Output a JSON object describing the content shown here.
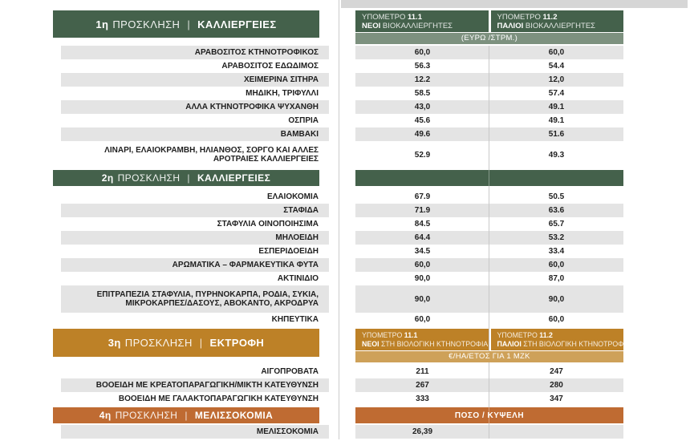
{
  "colors": {
    "green": "#44614b",
    "green_light": "#7d917f",
    "ochre": "#bd8127",
    "ochre_light": "#cea159",
    "orange": "#bf6b32",
    "stripe": "#e4e4e4",
    "topband": "#d6d6d6",
    "text": "#1f1f1f"
  },
  "table": {
    "sections": [
      {
        "header": {
          "num": "1η",
          "call": "ΠΡΟΣΚΛΗΣΗ",
          "sep": "|",
          "title": "ΚΑΛΛΙΕΡΓΕΙΕΣ"
        },
        "right": {
          "col1": {
            "label": "ΥΠΟΜΕΤΡΟ",
            "num": "11.1",
            "strong": "ΝΕΟΙ",
            "rest": "ΒΙΟΚΑΛΛΙΕΡΓΗΤΕΣ"
          },
          "col2": {
            "label": "ΥΠΟΜΕΤΡΟ",
            "num": "11.2",
            "strong": "ΠΑΛΙΟΙ",
            "rest": "ΒΙΟΚΑΛΛΙΕΡΓΗΤΕΣ"
          },
          "unit": "(ΕΥΡΩ /ΣΤΡΜ.)"
        },
        "first_shaded": true,
        "rows": [
          {
            "label": "ΑΡΑΒΟΣΙΤΟΣ ΚΤΗΝΟΤΡΟΦΙΚΟΣ",
            "v1": "60,0",
            "v2": "60,0"
          },
          {
            "label": "ΑΡΑΒΟΣΙΤΟΣ ΕΔΩΔΙΜΟΣ",
            "v1": "56.3",
            "v2": "54.4"
          },
          {
            "label": "ΧΕΙΜΕΡΙΝΑ ΣΙΤΗΡΑ",
            "v1": "12.2",
            "v2": "12,0"
          },
          {
            "label": "ΜΗΔΙΚΗ, ΤΡΙΦΥΛΛΙ",
            "v1": "58.5",
            "v2": "57.4"
          },
          {
            "label": "ΑΛΛΑ ΚΤΗΝΟΤΡΟΦΙΚΑ ΨΥΧΑΝΘΗ",
            "v1": "43,0",
            "v2": "49.1"
          },
          {
            "label": "ΟΣΠΡΙΑ",
            "v1": "45.6",
            "v2": "49.1"
          },
          {
            "label": "ΒΑΜΒΑΚΙ",
            "v1": "49.6",
            "v2": "51.6"
          },
          {
            "label": "ΛΙΝΑΡΙ, ΕΛΑΙΟΚΡΑΜΒΗ, ΗΛΙΑΝΘΟΣ, ΣΟΡΓΟ ΚΑΙ ΑΛΛΕΣ ΑΡΟΤΡΑΙΕΣ ΚΑΛΛΙΕΡΓΕΙΕΣ",
            "v1": "52.9",
            "v2": "49.3",
            "tall": true
          }
        ]
      },
      {
        "header": {
          "num": "2η",
          "call": "ΠΡΟΣΚΛΗΣΗ",
          "sep": "|",
          "title": "ΚΑΛΛΙΕΡΓΕΙΕΣ"
        },
        "right_bar": "",
        "first_shaded": false,
        "rows": [
          {
            "label": "ΕΛΑΙΟΚΟΜΙΑ",
            "v1": "67.9",
            "v2": "50.5"
          },
          {
            "label": "ΣΤΑΦΙΔΑ",
            "v1": "71.9",
            "v2": "63.6"
          },
          {
            "label": "ΣΤΑΦΥΛΙΑ ΟΙΝΟΠΟΙΗΣΙΜΑ",
            "v1": "84.5",
            "v2": "65.7"
          },
          {
            "label": "ΜΗΛΟΕΙΔΗ",
            "v1": "64.4",
            "v2": "53.2"
          },
          {
            "label": "ΕΣΠΕΡΙΔΟΕΙΔΗ",
            "v1": "34.5",
            "v2": "33.4"
          },
          {
            "label": "ΑΡΩΜΑΤΙΚΑ – ΦΑΡΜΑΚΕΥΤΙΚΑ ΦΥΤΑ",
            "v1": "60,0",
            "v2": "60,0"
          },
          {
            "label": "ΑΚΤΙΝΙΔΙΟ",
            "v1": "90,0",
            "v2": "87,0"
          },
          {
            "label": "ΕΠΙΤΡΑΠΕΖΙΑ ΣΤΑΦΥΛΙΑ, ΠΥΡΗΝΟΚΑΡΠΑ, ΡΟΔΙΑ, ΣΥΚΙΑ, ΜΙΚΡΟΚΑΡΠΕΣ/ΔΑΣΟΥΣ, ΑΒΟΚΑΝΤΟ, ΑΚΡΟΔΡΥΑ",
            "v1": "90,0",
            "v2": "90,0",
            "tall": true
          },
          {
            "label": "ΚΗΠΕΥΤΙΚΑ",
            "v1": "60,0",
            "v2": "60,0"
          }
        ]
      },
      {
        "header": {
          "num": "3η",
          "call": "ΠΡΟΣΚΛΗΣΗ",
          "sep": "|",
          "title": "ΕΚΤΡΟΦΗ"
        },
        "right": {
          "col1": {
            "label": "ΥΠΟΜΕΤΡΟ",
            "num": "11.1",
            "strong": "ΝΕΟΙ",
            "rest": "ΣΤΗ ΒΙΟΛΟΓΙΚΗ ΚΤΗΝΟΤΡΟΦΙΑ"
          },
          "col2": {
            "label": "ΥΠΟΜΕΤΡΟ",
            "num": "11.2",
            "strong": "ΠΑΛΙΟΙ",
            "rest": "ΣΤΗ ΒΙΟΛΟΓΙΚΗ ΚΤΗΝΟΤΡΟΦΙΑ"
          },
          "unit": "€/ΗΑ/ΕΤΟΣ ΓΙΑ 1 ΜΖΚ"
        },
        "first_shaded": false,
        "rows": [
          {
            "label": "ΑΙΓΟΠΡΟΒΑΤΑ",
            "v1": "211",
            "v2": "247"
          },
          {
            "label": "ΒΟΟΕΙΔΗ ΜΕ ΚΡΕΑΤΟΠΑΡΑΓΩΓΙΚΗ/ΜΙΚΤΗ ΚΑΤΕΥΘΥΝΣΗ",
            "v1": "267",
            "v2": "280"
          },
          {
            "label": "ΒΟΟΕΙΔΗ ΜΕ ΓΑΛΑΚΤΟΠΑΡΑΓΩΓΙΚΗ ΚΑΤΕΥΘΥΝΣΗ",
            "v1": "333",
            "v2": "347"
          }
        ]
      },
      {
        "header": {
          "num": "4η",
          "call": "ΠΡΟΣΚΛΗΣΗ",
          "sep": "|",
          "title": "ΜΕΛΙΣΣΟΚΟΜΙΑ"
        },
        "right_bar": "ΠΟΣΟ / ΚΥΨΕΛΗ",
        "first_shaded": true,
        "rows": [
          {
            "label": "ΜΕΛΙΣΣΟΚΟΜΙΑ",
            "v1": "26,39",
            "v2": ""
          }
        ]
      }
    ]
  }
}
